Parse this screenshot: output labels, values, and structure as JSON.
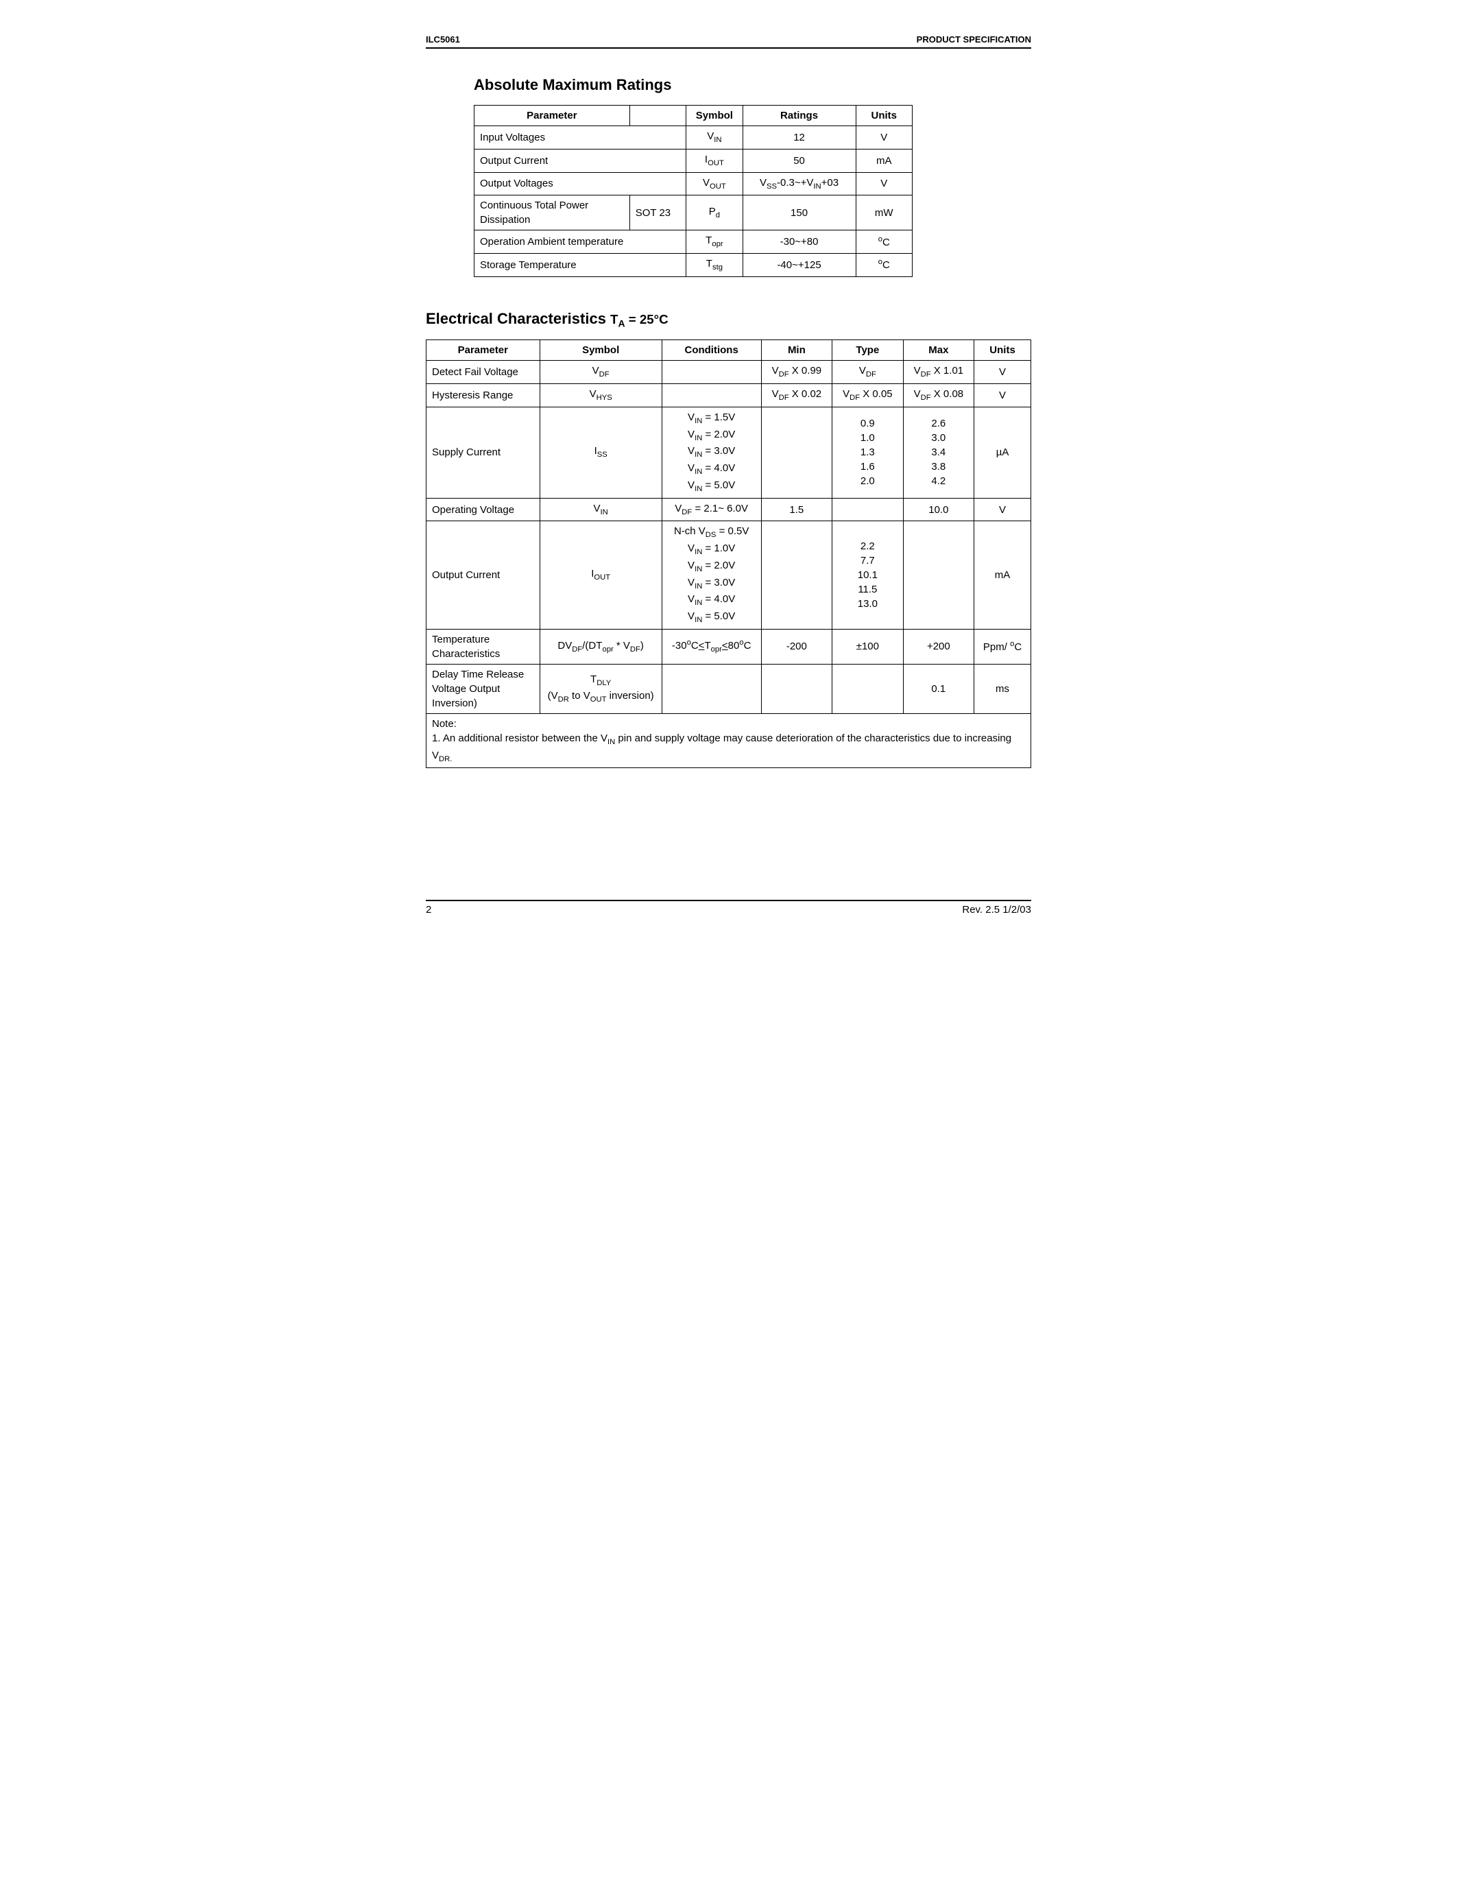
{
  "header": {
    "left": "ILC5061",
    "right": "PRODUCT SPECIFICATION"
  },
  "footer": {
    "page": "2",
    "rev": "Rev. 2.5 1/2/03"
  },
  "amr": {
    "title": "Absolute Maximum Ratings",
    "columns": [
      "Parameter",
      "",
      "Symbol",
      "Ratings",
      "Units"
    ],
    "rows": [
      {
        "param": "Input Voltages",
        "pkg": "",
        "symbol_html": "V<sub>IN</sub>",
        "ratings": "12",
        "units": "V",
        "span_pkg": true
      },
      {
        "param": "Output Current",
        "pkg": "",
        "symbol_html": "I<sub>OUT</sub>",
        "ratings": "50",
        "units": "mA",
        "span_pkg": true
      },
      {
        "param": "Output Voltages",
        "pkg": "",
        "symbol_html": "V<sub>OUT</sub>",
        "ratings_html": "V<sub>SS</sub>-0.3~+V<sub>IN</sub>+03",
        "units": "V",
        "span_pkg": true
      },
      {
        "param": "Continuous Total Power Dissipation",
        "pkg": "SOT 23",
        "symbol_html": "P<sub>d</sub>",
        "ratings": "150",
        "units": "mW",
        "span_pkg": false
      },
      {
        "param": "Operation Ambient temperature",
        "pkg": "",
        "symbol_html": "T<sub>opr</sub>",
        "ratings": "-30~+80",
        "units_html": "<sup>o</sup>C",
        "span_pkg": true
      },
      {
        "param": "Storage Temperature",
        "pkg": "",
        "symbol_html": "T<sub>stg</sub>",
        "ratings": "-40~+125",
        "units_html": "<sup>o</sup>C",
        "span_pkg": true
      }
    ]
  },
  "ec": {
    "title_prefix": "Electrical Characteristics ",
    "title_cond_html": "T<sub>A</sub> = 25°C",
    "columns": [
      "Parameter",
      "Symbol",
      "Conditions",
      "Min",
      "Type",
      "Max",
      "Units"
    ],
    "rows": [
      {
        "param": "Detect Fail Voltage",
        "symbol_html": "V<sub>DF</sub>",
        "conditions_html": "",
        "min_html": "V<sub>DF</sub> X 0.99",
        "type_html": "V<sub>DF</sub>",
        "max_html": "V<sub>DF</sub> X 1.01",
        "units": "V"
      },
      {
        "param": "Hysteresis Range",
        "symbol_html": "V<sub>HYS</sub>",
        "conditions_html": "",
        "min_html": "V<sub>DF</sub> X 0.02",
        "type_html": "V<sub>DF</sub> X 0.05",
        "max_html": "V<sub>DF</sub> X 0.08",
        "units": "V"
      },
      {
        "param": "Supply Current",
        "symbol_html": "I<sub>SS</sub>",
        "conditions_html": "V<sub>IN</sub> = 1.5V<br>V<sub>IN</sub> = 2.0V<br>V<sub>IN</sub> = 3.0V<br>V<sub>IN</sub> = 4.0V<br>V<sub>IN</sub> = 5.0V",
        "min_html": "",
        "type_html": "0.9<br>1.0<br>1.3<br>1.6<br>2.0",
        "max_html": "2.6<br>3.0<br>3.4<br>3.8<br>4.2",
        "units": "µA"
      },
      {
        "param": "Operating Voltage",
        "symbol_html": "V<sub>IN</sub>",
        "conditions_html": "V<sub>DF</sub> = 2.1~ 6.0V",
        "min_html": "1.5",
        "type_html": "",
        "max_html": "10.0",
        "units": "V"
      },
      {
        "param": "Output Current",
        "symbol_html": "I<sub>OUT</sub>",
        "conditions_html": "N-ch V<sub>DS</sub> = 0.5V<br>V<sub>IN</sub> = 1.0V<br>V<sub>IN</sub> = 2.0V<br>V<sub>IN</sub> = 3.0V<br>V<sub>IN</sub> = 4.0V<br>V<sub>IN</sub> = 5.0V",
        "min_html": "",
        "type_html": "2.2<br>7.7<br>10.1<br>11.5<br>13.0",
        "max_html": "",
        "units": "mA"
      },
      {
        "param": "Temperature Characteristics",
        "symbol_html": "DV<sub>DF</sub>/(DT<sub>opr</sub> * V<sub>DF</sub>)",
        "conditions_html": "-30<sup>o</sup>C<u>&lt;</u>T<sub>opr</sub><u>&lt;</u>80<sup>o</sup>C",
        "min_html": "-200",
        "type_html": "±100",
        "max_html": "+200",
        "units_html": "Ppm/ <sup>o</sup>C"
      },
      {
        "param": "Delay Time Release Voltage  Output Inversion)",
        "symbol_html": "T<sub>DLY</sub><br>(V<sub>DR</sub> to V<sub>OUT</sub> inversion)",
        "conditions_html": "",
        "min_html": "",
        "type_html": "",
        "max_html": "0.1",
        "units": "ms"
      }
    ],
    "note_html": "Note:<br>1. An additional resistor between the V<sub>IN</sub> pin and supply voltage may cause deterioration of the characteristics due to increasing V<sub>DR.</sub>"
  },
  "widths": {
    "amr": {
      "param": 220,
      "pkg": 80,
      "symbol": 80,
      "ratings": 160,
      "units": 80
    },
    "ec": {
      "param": 160,
      "symbol": 130,
      "conditions": 140,
      "min": 100,
      "type": 100,
      "max": 100,
      "units": 80
    }
  }
}
